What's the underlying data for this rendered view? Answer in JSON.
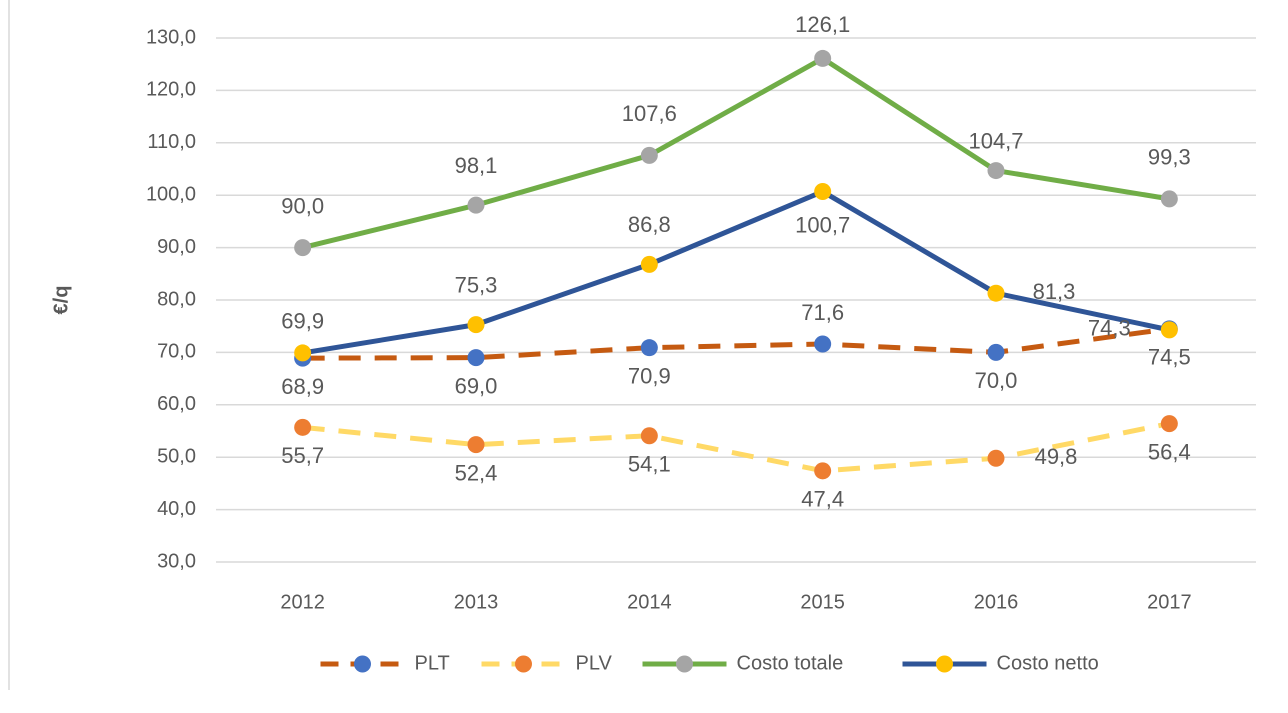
{
  "chart_data": {
    "type": "line",
    "y_label": "€/q",
    "categories": [
      "2012",
      "2013",
      "2014",
      "2015",
      "2016",
      "2017"
    ],
    "ylim": [
      30,
      130
    ],
    "yticks": [
      {
        "value": 30,
        "label": "30,0"
      },
      {
        "value": 40,
        "label": "40,0"
      },
      {
        "value": 50,
        "label": "50,0"
      },
      {
        "value": 60,
        "label": "60,0"
      },
      {
        "value": 70,
        "label": "70,0"
      },
      {
        "value": 80,
        "label": "80,0"
      },
      {
        "value": 90,
        "label": "90,0"
      },
      {
        "value": 100,
        "label": "100,0"
      },
      {
        "value": 110,
        "label": "110,0"
      },
      {
        "value": 120,
        "label": "120,0"
      },
      {
        "value": 130,
        "label": "130,0"
      }
    ],
    "grid": true,
    "legend": "bottom",
    "series": [
      {
        "name": "PLT",
        "color": "#c55a11",
        "marker_color": "#4472c4",
        "dashed": true,
        "values": [
          68.9,
          69.0,
          70.9,
          71.6,
          70.0,
          74.5
        ],
        "value_labels": [
          "68,9",
          "69,0",
          "70,9",
          "71,6",
          "70,0",
          "74,5"
        ]
      },
      {
        "name": "PLV",
        "color": "#ffd966",
        "marker_color": "#ed7d31",
        "dashed": true,
        "values": [
          55.7,
          52.4,
          54.1,
          47.4,
          49.8,
          56.4
        ],
        "value_labels": [
          "55,7",
          "52,4",
          "54,1",
          "47,4",
          "49,8",
          "56,4"
        ]
      },
      {
        "name": "Costo totale",
        "color": "#70ad47",
        "marker_color": "#a5a5a5",
        "dashed": false,
        "values": [
          90.0,
          98.1,
          107.6,
          126.1,
          104.7,
          99.3
        ],
        "value_labels": [
          "90,0",
          "98,1",
          "107,6",
          "126,1",
          "104,7",
          "99,3"
        ]
      },
      {
        "name": "Costo netto",
        "color": "#2f5597",
        "marker_color": "#ffc000",
        "dashed": false,
        "values": [
          69.9,
          75.3,
          86.8,
          100.7,
          81.3,
          74.3
        ],
        "value_labels": [
          "69,9",
          "75,3",
          "86,8",
          "100,7",
          "81,3",
          "74,3"
        ]
      }
    ]
  }
}
